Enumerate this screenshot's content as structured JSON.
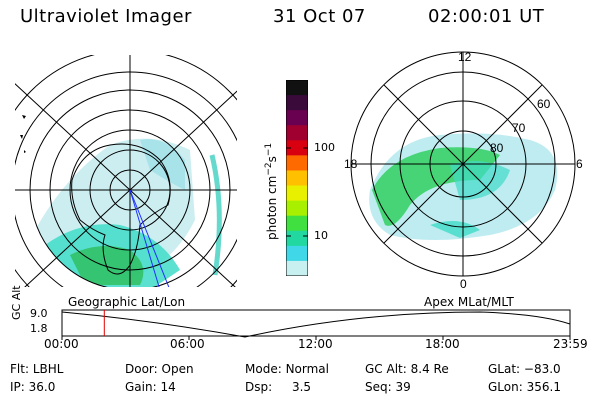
{
  "header": {
    "instrument": "Ultraviolet Imager",
    "date": "31 Oct 07",
    "time": "02:00:01 UT"
  },
  "colorbar": {
    "unit_main": "photon cm",
    "unit_sup1": "−2",
    "unit_mid": "s",
    "unit_sup2": "−1",
    "ticks": [
      "100",
      "10"
    ],
    "colors": [
      "#111111",
      "#3a0a3a",
      "#6a0050",
      "#a00030",
      "#d80010",
      "#ff6a00",
      "#ffc000",
      "#e8f000",
      "#a8f000",
      "#40e040",
      "#20d8a0",
      "#40d8e8",
      "#c8f0f0"
    ]
  },
  "left_map": {
    "caption": "Geographic Lat/Lon"
  },
  "right_map": {
    "caption": "Apex MLat/MLT",
    "mlt_labels": {
      "top": "12",
      "bottom": "0",
      "left": "18",
      "right": "6"
    },
    "lat_labels": [
      "60",
      "70",
      "80"
    ]
  },
  "timeline": {
    "y_axis_label": "GC Alt",
    "y_ticks": [
      "9.0",
      "1.8"
    ],
    "x_ticks": [
      "00:00",
      "06:00",
      "12:00",
      "18:00",
      "23:59"
    ],
    "marker_time_hours": 2.0
  },
  "info": {
    "filter_label": "Flt:",
    "filter_value": "LBHL",
    "ip_label": "IP:",
    "ip_value": "36.0",
    "door_label": "Door:",
    "door_value": "Open",
    "gain_label": "Gain:",
    "gain_value": "14",
    "mode_label": "Mode:",
    "mode_value": "Normal",
    "dsp_label": "Dsp:",
    "dsp_value": "3.5",
    "gcalt_label": "GC Alt:",
    "gcalt_value": "8.4 Re",
    "seq_label": "Seq:",
    "seq_value": "39",
    "glat_label": "GLat:",
    "glat_value": "−83.0",
    "glon_label": "GLon:",
    "glon_value": "356.1"
  }
}
